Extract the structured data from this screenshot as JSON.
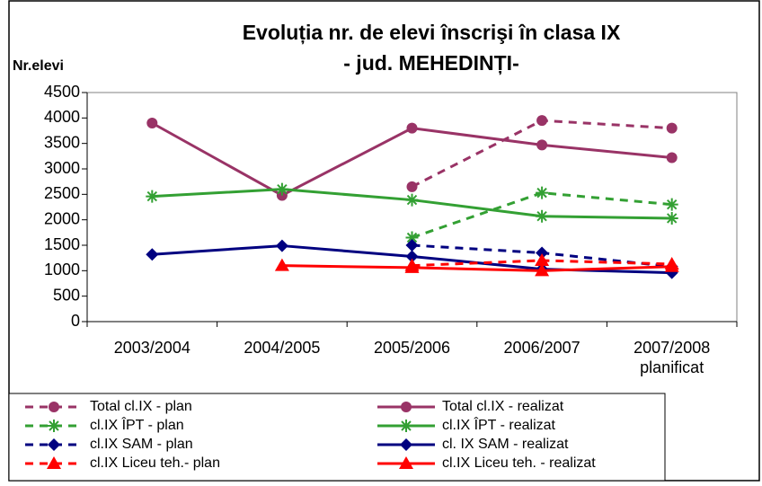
{
  "chart_data": {
    "type": "line",
    "title": "Evoluția nr. de elevi înscrişi în clasa IX",
    "subtitle": "- jud. MEHEDINȚI-",
    "y_label": "Nr.elevi",
    "categories": [
      "2003/2004",
      "2004/2005",
      "2005/2006",
      "2006/2007",
      "2007/2008 planificat"
    ],
    "ylim": [
      0,
      4500
    ],
    "yticks": [
      0,
      500,
      1000,
      1500,
      2000,
      2500,
      3000,
      3500,
      4000,
      4500
    ],
    "series": [
      {
        "name": "Total cl.IX - plan",
        "color": "#993366",
        "dashed": true,
        "marker": "circle",
        "values": [
          null,
          null,
          2650,
          3950,
          3800
        ]
      },
      {
        "name": "Total cl.IX - realizat",
        "color": "#993366",
        "dashed": false,
        "marker": "circle",
        "values": [
          3900,
          2480,
          3800,
          3470,
          3220
        ]
      },
      {
        "name": "cl.IX ÎPT - plan",
        "color": "#33a033",
        "dashed": true,
        "marker": "asterisk",
        "values": [
          null,
          null,
          1650,
          2530,
          2300
        ]
      },
      {
        "name": "cl.IX ÎPT - realizat",
        "color": "#33a033",
        "dashed": false,
        "marker": "asterisk",
        "values": [
          2460,
          2600,
          2390,
          2070,
          2030
        ]
      },
      {
        "name": "cl.IX SAM - plan",
        "color": "#000080",
        "dashed": true,
        "marker": "diamond",
        "values": [
          null,
          null,
          1500,
          1350,
          1080
        ]
      },
      {
        "name": "cl. IX SAM - realizat",
        "color": "#000080",
        "dashed": false,
        "marker": "diamond",
        "values": [
          1320,
          1490,
          1280,
          1030,
          960
        ]
      },
      {
        "name": "cl.IX Liceu teh.- plan",
        "color": "#ff0000",
        "dashed": true,
        "marker": "triangle",
        "values": [
          null,
          null,
          1100,
          1200,
          1130
        ]
      },
      {
        "name": "cl.IX Liceu teh. - realizat",
        "color": "#ff0000",
        "dashed": false,
        "marker": "triangle",
        "values": [
          null,
          1100,
          1060,
          1000,
          1080
        ]
      }
    ]
  }
}
